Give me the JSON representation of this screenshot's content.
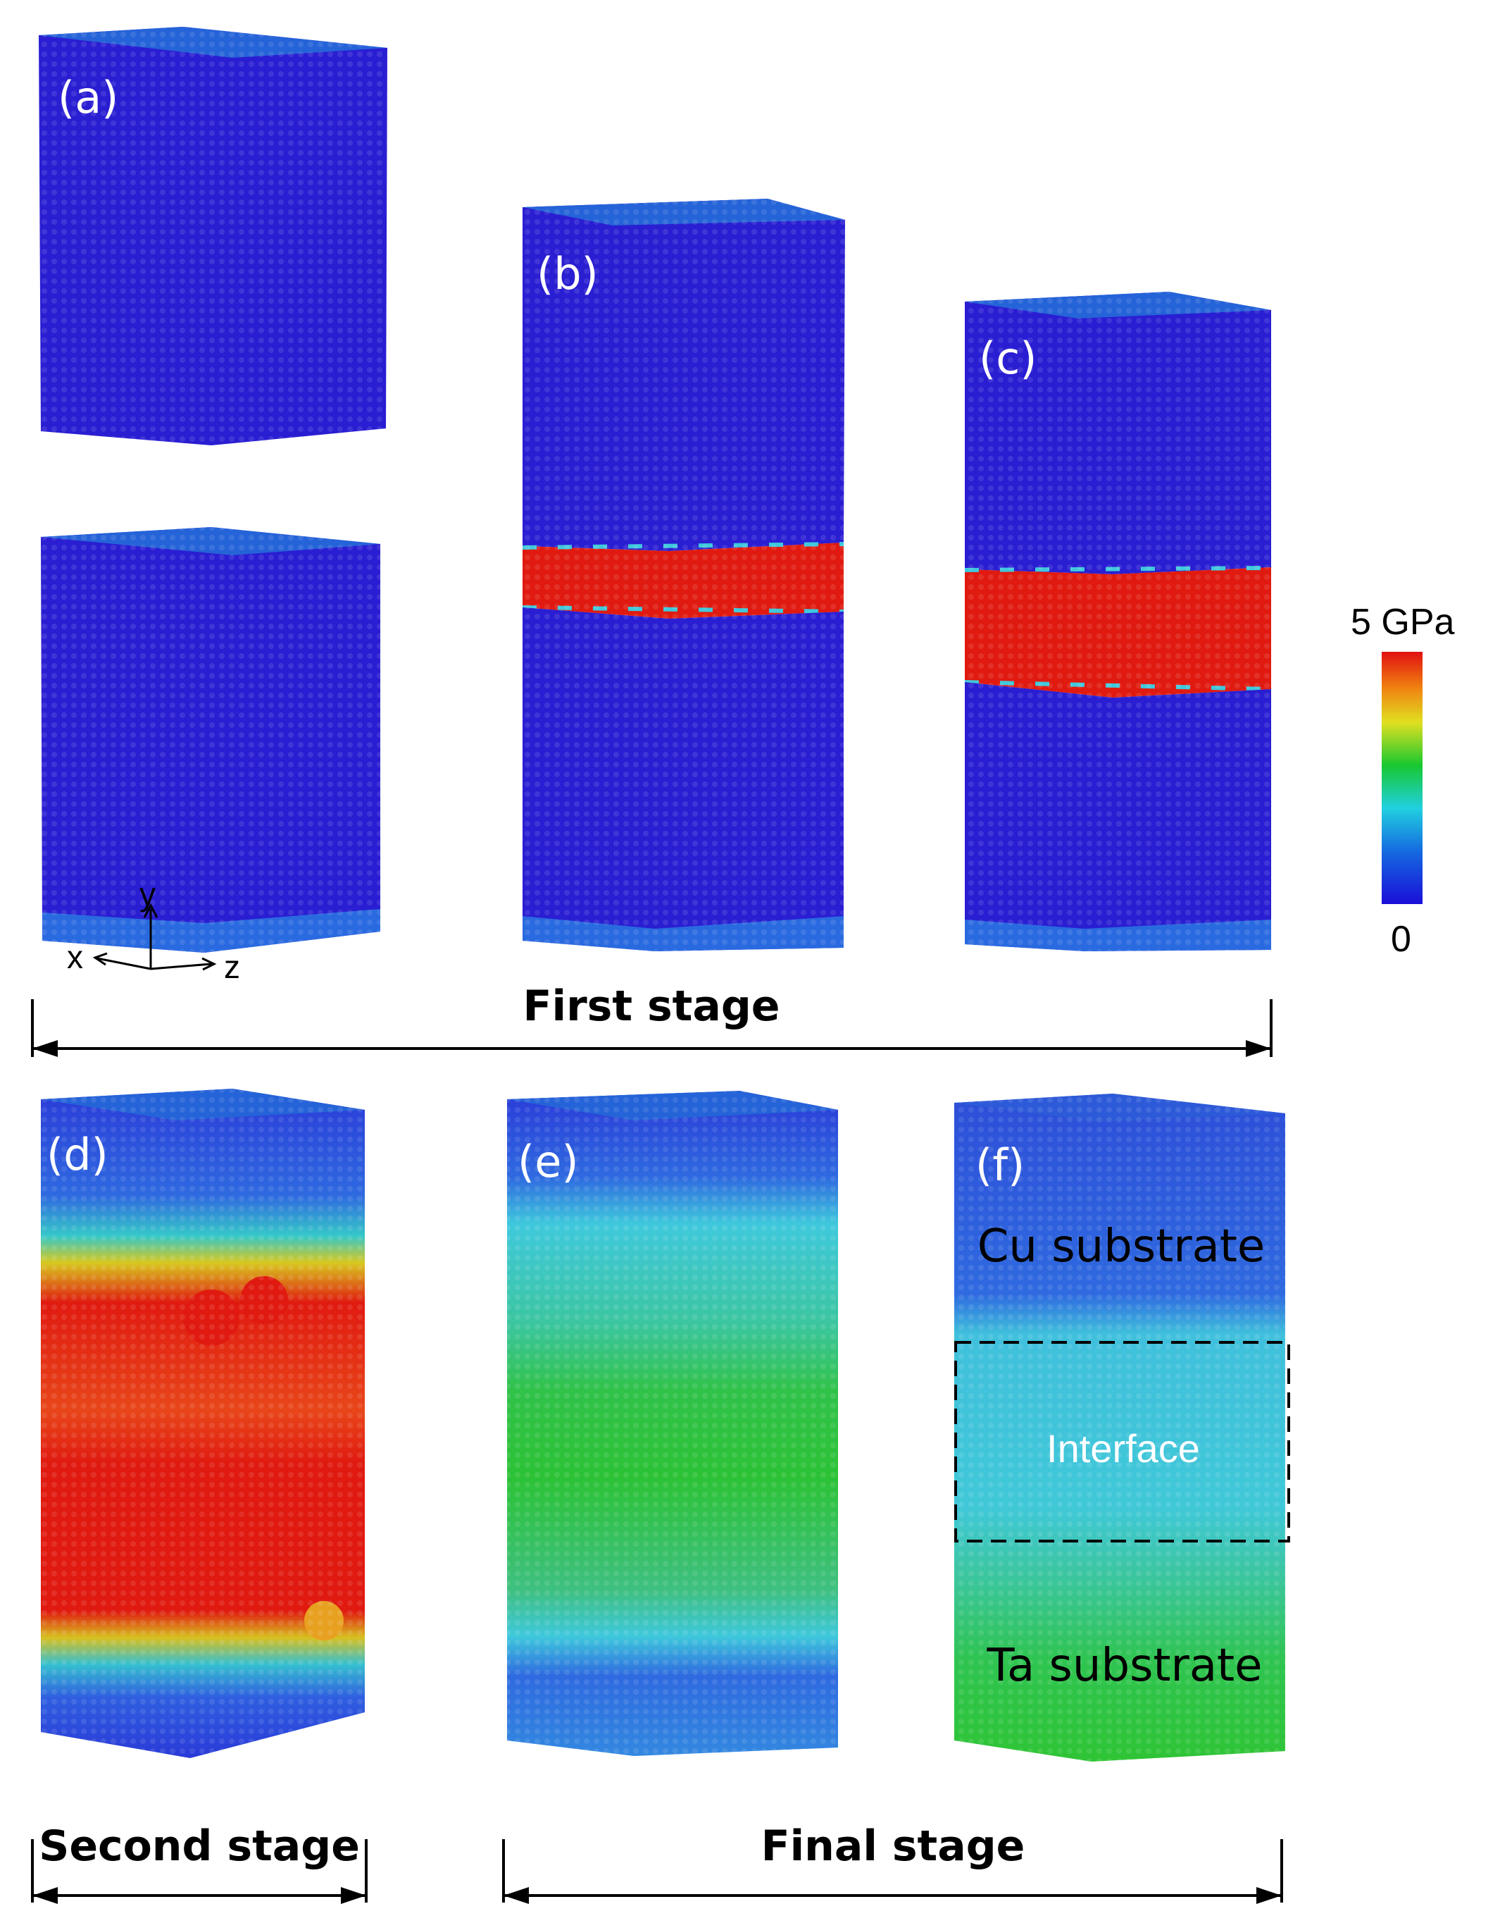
{
  "panels": {
    "a": "(a)",
    "b": "(b)",
    "c": "(c)",
    "d": "(d)",
    "e": "(e)",
    "f": "(f)"
  },
  "stages": {
    "first": "First stage",
    "second": "Second stage",
    "final": "Final stage"
  },
  "regions": {
    "cu": "Cu substrate",
    "interface": "Interface",
    "ta": "Ta substrate"
  },
  "colorbar": {
    "max_label": "5 GPa",
    "min_label": "0",
    "max_value_gpa": 5,
    "min_value_gpa": 0,
    "colors": [
      "#1a0fd8",
      "#1565e0",
      "#20d0e0",
      "#18c830",
      "#e0e020",
      "#f08010",
      "#e01010"
    ]
  },
  "axes": {
    "x": "x",
    "y": "y",
    "z": "z"
  },
  "palette": {
    "blue": "#2a1ed2",
    "red": "#e01a10",
    "green": "#2fc435",
    "cyan": "#3fc8dc"
  }
}
